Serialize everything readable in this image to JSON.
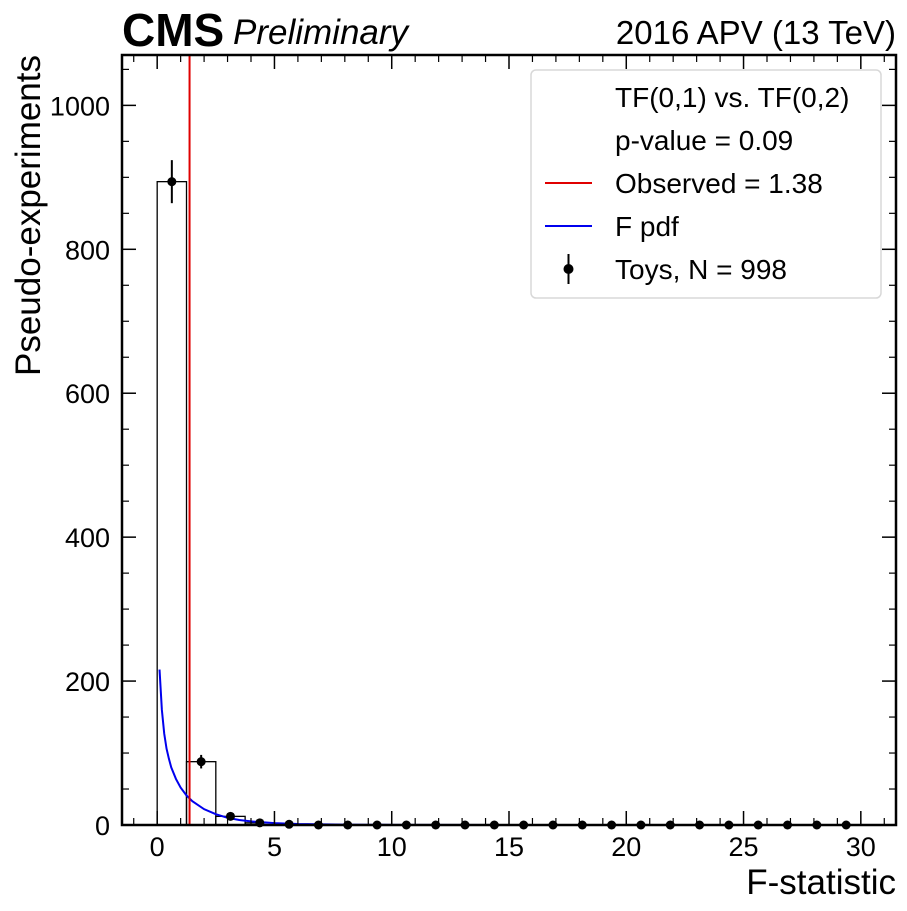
{
  "header": {
    "experiment": "CMS",
    "status": "Preliminary",
    "lumi_label": "2016 APV (13 TeV)"
  },
  "chart_data": {
    "type": "histogram",
    "xlabel": "F-statistic",
    "ylabel": "Pseudo-experiments",
    "xlim": [
      -1.5,
      31.5
    ],
    "ylim": [
      0,
      1070
    ],
    "x_ticks": [
      0,
      5,
      10,
      15,
      20,
      25,
      30
    ],
    "y_ticks": [
      0,
      200,
      400,
      600,
      800,
      1000
    ],
    "bin_edges": [
      0.0,
      1.25,
      2.5,
      3.75,
      5.0,
      6.25,
      7.5,
      8.75,
      10.0,
      11.25,
      12.5,
      13.75,
      15.0,
      16.25,
      17.5,
      18.75,
      20.0,
      21.25,
      22.5,
      23.75,
      25.0,
      26.25,
      27.5,
      28.75,
      30.0
    ],
    "histogram_values": [
      894,
      88,
      12,
      3,
      1,
      0,
      0,
      0,
      0,
      0,
      0,
      0,
      0,
      0,
      0,
      0,
      0,
      0,
      0,
      0,
      0,
      0,
      0,
      0
    ],
    "toys": {
      "name": "Toys, N = 998",
      "x": [
        0.625,
        1.875,
        3.125,
        4.375,
        5.625,
        6.875,
        8.125,
        9.375,
        10.625,
        11.875,
        13.125,
        14.375,
        15.625,
        16.875,
        18.125,
        19.375,
        20.625,
        21.875,
        23.125,
        24.375,
        25.625,
        26.875,
        28.125,
        29.375
      ],
      "y": [
        894,
        88,
        12,
        3,
        1,
        0,
        0,
        0,
        0,
        0,
        0,
        0,
        0,
        0,
        0,
        0,
        0,
        0,
        0,
        0,
        0,
        0,
        0,
        0
      ],
      "yerr": [
        29.9,
        9.4,
        3.5,
        1.7,
        1.0,
        0,
        0,
        0,
        0,
        0,
        0,
        0,
        0,
        0,
        0,
        0,
        0,
        0,
        0,
        0,
        0,
        0,
        0,
        0
      ],
      "color": "#000000"
    },
    "observed": {
      "name": "Observed = 1.38",
      "value": 1.38,
      "color": "#e00000"
    },
    "f_pdf": {
      "name": "F pdf",
      "color": "#0000ee",
      "x": [
        0.1,
        0.2,
        0.3,
        0.4,
        0.5,
        0.6,
        0.8,
        1.0,
        1.25,
        1.5,
        2.0,
        2.5,
        3.0,
        3.5,
        4.0,
        5.0,
        6.0,
        8.0,
        10.0,
        15.0,
        20.0,
        25.0,
        30.0
      ],
      "y": [
        216,
        160,
        127,
        106,
        92,
        80,
        64,
        52,
        41,
        33,
        22,
        15,
        10,
        7,
        5,
        2.6,
        1.4,
        0.5,
        0.2,
        0.05,
        0.02,
        0.01,
        0.0
      ]
    },
    "legend": {
      "placement": "top-right",
      "entries": [
        "TF(0,1) vs. TF(0,2)",
        "p-value = 0.09",
        "Observed = 1.38",
        "F pdf",
        "Toys, N = 998"
      ]
    }
  }
}
